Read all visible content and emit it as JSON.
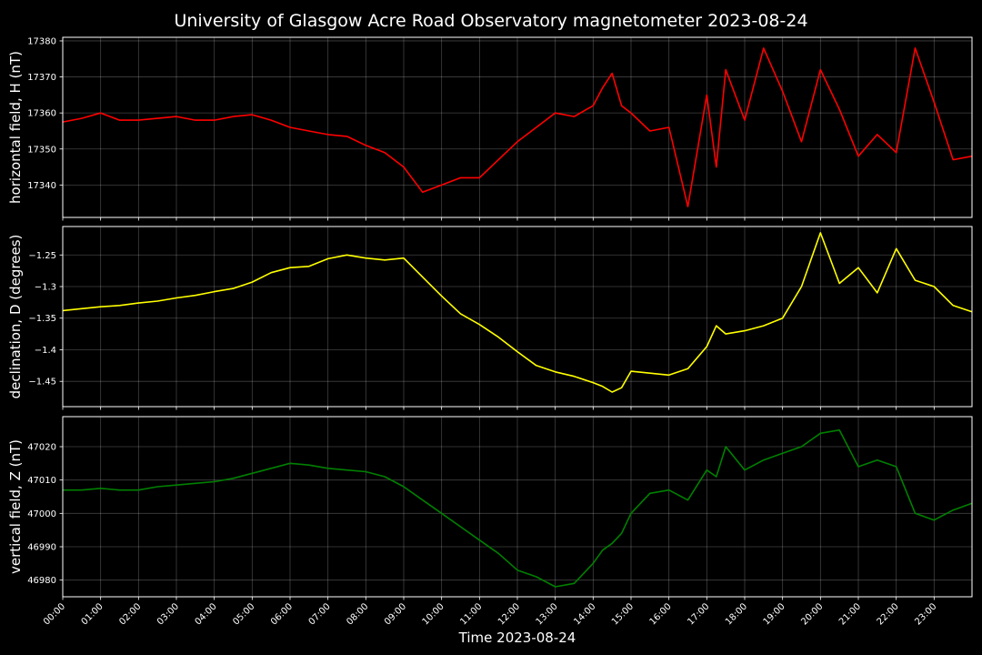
{
  "chart_data": {
    "type": "line",
    "title": "University of Glasgow Acre Road Observatory magnetometer 2023-08-24",
    "xlabel": "Time 2023-08-24",
    "xlim": [
      "00:00",
      "24:00"
    ],
    "x_tick_labels": [
      "00:00",
      "01:00",
      "02:00",
      "03:00",
      "04:00",
      "05:00",
      "06:00",
      "07:00",
      "08:00",
      "09:00",
      "10:00",
      "11:00",
      "12:00",
      "13:00",
      "14:00",
      "15:00",
      "16:00",
      "17:00",
      "18:00",
      "19:00",
      "20:00",
      "21:00",
      "22:00",
      "23:00"
    ],
    "x": [
      "00:00",
      "00:30",
      "01:00",
      "01:30",
      "02:00",
      "02:30",
      "03:00",
      "03:30",
      "04:00",
      "04:30",
      "05:00",
      "05:30",
      "06:00",
      "06:30",
      "07:00",
      "07:30",
      "08:00",
      "08:30",
      "09:00",
      "09:30",
      "10:00",
      "10:30",
      "11:00",
      "11:30",
      "12:00",
      "12:30",
      "13:00",
      "13:30",
      "14:00",
      "14:15",
      "14:30",
      "14:45",
      "15:00",
      "15:30",
      "16:00",
      "16:30",
      "17:00",
      "17:15",
      "17:30",
      "18:00",
      "18:30",
      "19:00",
      "19:30",
      "20:00",
      "20:30",
      "21:00",
      "21:30",
      "22:00",
      "22:30",
      "23:00",
      "23:30",
      "24:00"
    ],
    "grid": true,
    "legend": "none",
    "background": "#000000",
    "subplots": [
      {
        "ylabel": "horizontal field, H (nT)",
        "color": "#ff0000",
        "ylim": [
          17331,
          17381
        ],
        "y_ticks": [
          17340,
          17350,
          17360,
          17370,
          17380
        ],
        "values": [
          17357.5,
          17358.5,
          17360,
          17358,
          17358,
          17358.5,
          17359,
          17358,
          17358,
          17359,
          17359.5,
          17358,
          17356,
          17355,
          17354,
          17353.5,
          17351,
          17349,
          17345,
          17338,
          17340,
          17342,
          17342,
          17347,
          17352,
          17356,
          17360,
          17359,
          17362,
          17367,
          17371,
          17362,
          17360,
          17355,
          17356,
          17334,
          17365,
          17345,
          17372,
          17358,
          17378,
          17366,
          17352,
          17372,
          17361,
          17348,
          17354,
          17349,
          17378,
          17363,
          17347,
          17348
        ]
      },
      {
        "ylabel": "declination, D (degrees)",
        "color": "#ffff00",
        "ylim": [
          -1.49,
          -1.205
        ],
        "y_ticks": [
          -1.25,
          -1.3,
          -1.35,
          -1.4,
          -1.45
        ],
        "values": [
          -1.338,
          -1.335,
          -1.332,
          -1.33,
          -1.326,
          -1.323,
          -1.318,
          -1.314,
          -1.308,
          -1.303,
          -1.293,
          -1.278,
          -1.27,
          -1.268,
          -1.256,
          -1.25,
          -1.255,
          -1.258,
          -1.255,
          -1.285,
          -1.315,
          -1.343,
          -1.36,
          -1.38,
          -1.403,
          -1.425,
          -1.435,
          -1.442,
          -1.452,
          -1.458,
          -1.467,
          -1.46,
          -1.434,
          -1.437,
          -1.44,
          -1.43,
          -1.395,
          -1.362,
          -1.375,
          -1.37,
          -1.362,
          -1.35,
          -1.3,
          -1.215,
          -1.295,
          -1.27,
          -1.31,
          -1.24,
          -1.29,
          -1.3,
          -1.33,
          -1.34
        ]
      },
      {
        "ylabel": "vertical field, Z (nT)",
        "color": "#008000",
        "ylim": [
          46975,
          47029
        ],
        "y_ticks": [
          46980,
          46990,
          47000,
          47010,
          47020
        ],
        "values": [
          47007,
          47007,
          47007.5,
          47007,
          47007,
          47008,
          47008.5,
          47009,
          47009.5,
          47010.5,
          47012,
          47013.5,
          47015,
          47014.5,
          47013.5,
          47013,
          47012.5,
          47011,
          47008,
          47004,
          47000,
          46996,
          46992,
          46988,
          46983,
          46981,
          46978,
          46979,
          46985,
          46989,
          46991,
          46994,
          47000,
          47006,
          47007,
          47004,
          47013,
          47011,
          47020,
          47013,
          47016,
          47018,
          47020,
          47024,
          47025,
          47014,
          47016,
          47014,
          47000,
          46998,
          47001,
          47003
        ]
      }
    ]
  }
}
